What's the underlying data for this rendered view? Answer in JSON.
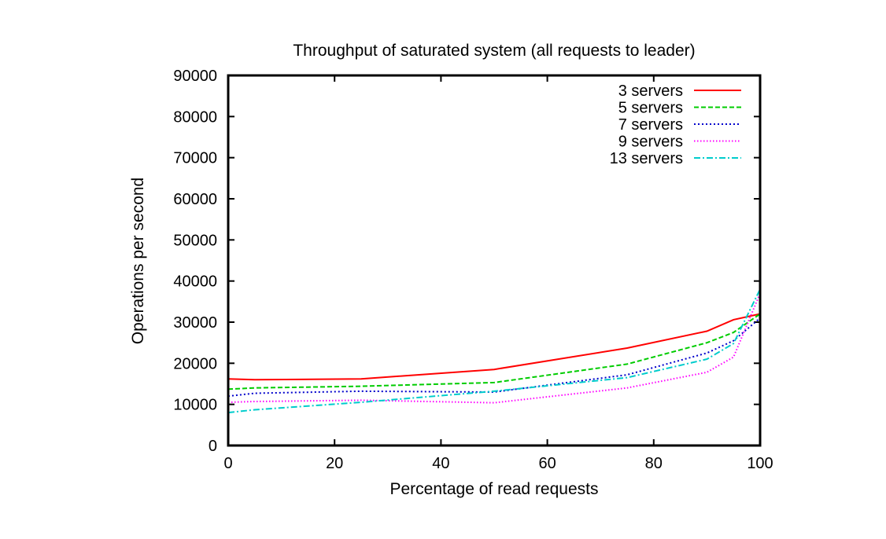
{
  "chart_data": {
    "type": "line",
    "title": "Throughput of saturated system (all requests to leader)",
    "xlabel": "Percentage of read requests",
    "ylabel": "Operations per second",
    "xlim": [
      0,
      100
    ],
    "ylim": [
      0,
      90000
    ],
    "xticks": [
      0,
      20,
      40,
      60,
      80,
      100
    ],
    "yticks": [
      0,
      10000,
      20000,
      30000,
      40000,
      50000,
      60000,
      70000,
      80000,
      90000
    ],
    "grid": false,
    "legend_position": "top-right",
    "x": [
      0,
      5,
      25,
      50,
      75,
      90,
      95,
      100
    ],
    "series": [
      {
        "name": "3 servers",
        "color": "#ff0000",
        "dash": "solid",
        "values": [
          16200,
          16000,
          16200,
          18500,
          23700,
          27800,
          30600,
          32000
        ]
      },
      {
        "name": "5 servers",
        "color": "#00cc00",
        "dash": "dashed",
        "values": [
          13700,
          14000,
          14400,
          15300,
          19800,
          25000,
          27500,
          32000
        ]
      },
      {
        "name": "7 servers",
        "color": "#0000cc",
        "dash": "dotted",
        "values": [
          12000,
          12700,
          13200,
          13000,
          17200,
          22500,
          25500,
          31000
        ]
      },
      {
        "name": "9 servers",
        "color": "#ff00ff",
        "dash": "dotted-fine",
        "values": [
          10500,
          10700,
          11000,
          10400,
          14000,
          17800,
          21500,
          37000
        ]
      },
      {
        "name": "13 servers",
        "color": "#00cccc",
        "dash": "dash-dot",
        "values": [
          8000,
          8700,
          10500,
          13200,
          16500,
          21000,
          24800,
          38000
        ]
      }
    ]
  }
}
